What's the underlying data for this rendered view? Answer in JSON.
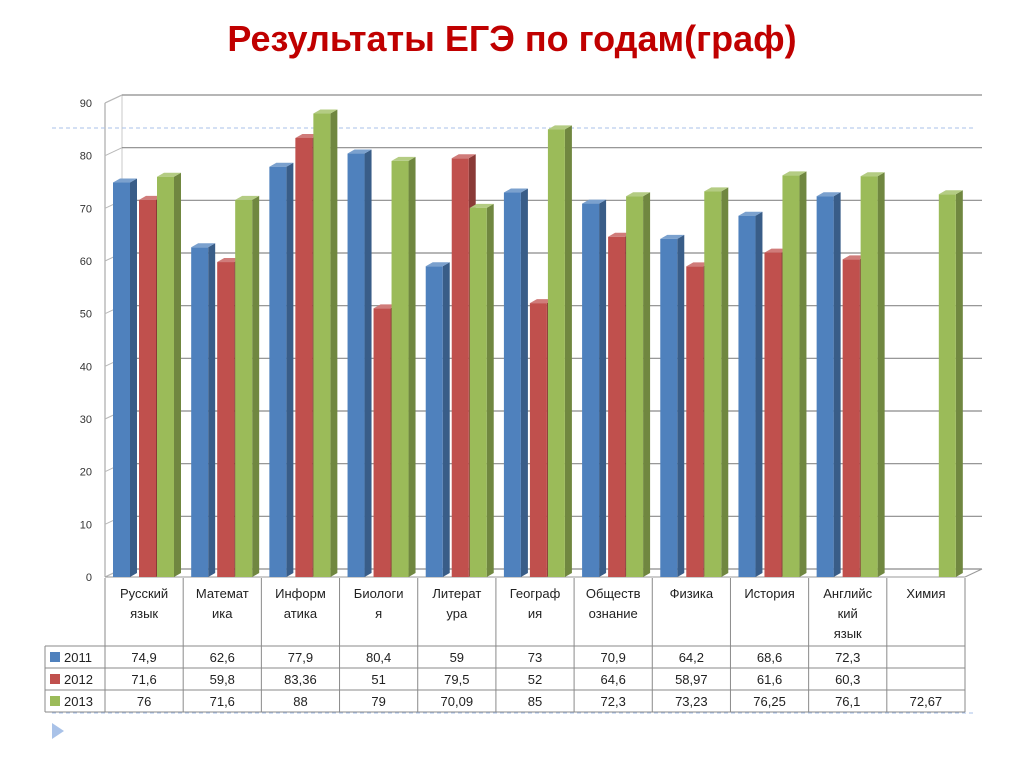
{
  "slide": {
    "title": "Результаты ЕГЭ по годам(граф)"
  },
  "chart_data": {
    "type": "bar",
    "title": "",
    "xlabel": "",
    "ylabel": "",
    "ylim": [
      0,
      90
    ],
    "yticks": [
      0,
      10,
      20,
      30,
      40,
      50,
      60,
      70,
      80,
      90
    ],
    "grid": true,
    "legend": "data-table-left",
    "categories": [
      [
        "Русский",
        "язык"
      ],
      [
        "Математ",
        "ика"
      ],
      [
        "Информ",
        "атика"
      ],
      [
        "Биологи",
        "я"
      ],
      [
        "Литерат",
        "ура"
      ],
      [
        "Географ",
        "ия"
      ],
      [
        "Обществ",
        "ознание"
      ],
      [
        "Физика"
      ],
      [
        "История"
      ],
      [
        "Английс",
        "кий",
        "язык"
      ],
      [
        "Химия"
      ]
    ],
    "series": [
      {
        "name": "2011",
        "color": "#4f81bd",
        "values": [
          74.9,
          62.6,
          77.9,
          80.4,
          59,
          73,
          70.9,
          64.2,
          68.6,
          72.3,
          null
        ],
        "labels": [
          "74,9",
          "62,6",
          "77,9",
          "80,4",
          "59",
          "73",
          "70,9",
          "64,2",
          "68,6",
          "72,3",
          ""
        ]
      },
      {
        "name": "2012",
        "color": "#c0504d",
        "values": [
          71.6,
          59.8,
          83.36,
          51,
          79.5,
          52,
          64.6,
          58.97,
          61.6,
          60.3,
          null
        ],
        "labels": [
          "71,6",
          "59,8",
          "83,36",
          "51",
          "79,5",
          "52",
          "64,6",
          "58,97",
          "61,6",
          "60,3",
          ""
        ]
      },
      {
        "name": "2013",
        "color": "#9bbb59",
        "values": [
          76,
          71.6,
          88,
          79,
          70.09,
          85,
          72.3,
          73.23,
          76.25,
          76.1,
          72.67
        ],
        "labels": [
          "76",
          "71,6",
          "88",
          "79",
          "70,09",
          "85",
          "72,3",
          "73,23",
          "76,25",
          "76,1",
          "72,67"
        ]
      }
    ]
  }
}
